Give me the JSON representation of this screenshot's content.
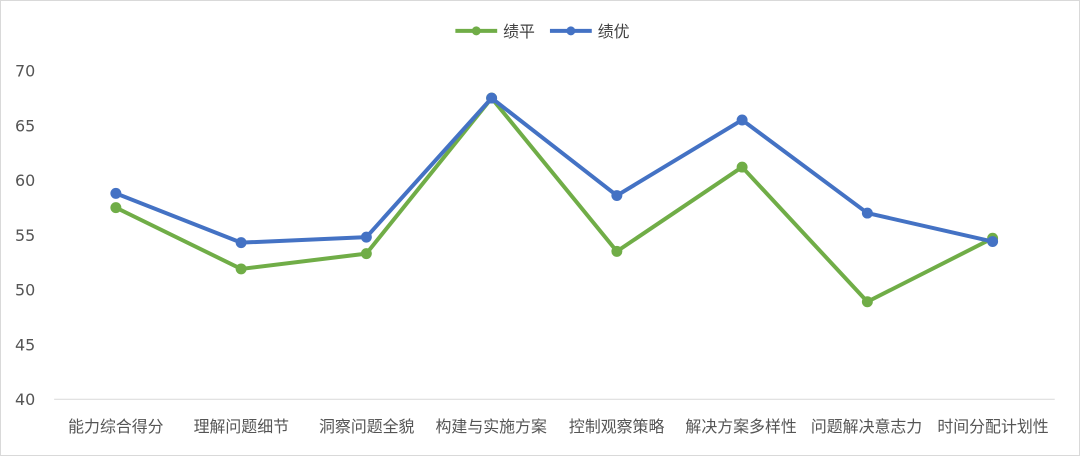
{
  "chart_data": {
    "type": "line",
    "title": "",
    "xlabel": "",
    "ylabel": "",
    "categories": [
      "能力综合得分",
      "理解问题细节",
      "洞察问题全貌",
      "构建与实施方案",
      "控制观察策略",
      "解决方案多样性",
      "问题解决意志力",
      "时间分配计划性"
    ],
    "yticks": [
      "70",
      "65",
      "60",
      "55",
      "50",
      "45",
      "40"
    ],
    "ylim": [
      40,
      70
    ],
    "grid": false,
    "legend_position": "top-center",
    "series": [
      {
        "name": "绩平",
        "color": "#70ad47",
        "values": [
          57.5,
          51.9,
          53.3,
          67.5,
          53.5,
          61.2,
          48.9,
          54.7
        ]
      },
      {
        "name": "绩优",
        "color": "#4472c4",
        "values": [
          58.8,
          54.3,
          54.8,
          67.5,
          58.6,
          65.5,
          57.0,
          54.4
        ]
      }
    ]
  }
}
